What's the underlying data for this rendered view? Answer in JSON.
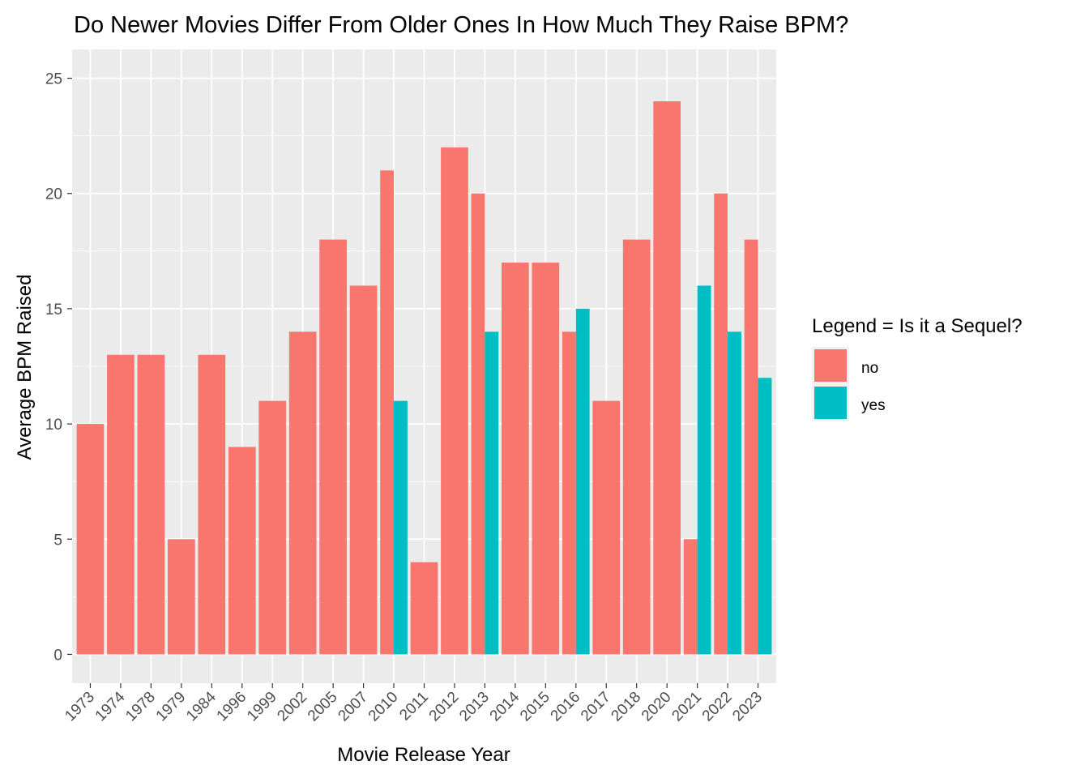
{
  "chart_data": {
    "type": "bar",
    "title": "Do Newer Movies Differ From Older Ones In How Much They Raise BPM?",
    "xlabel": "Movie Release Year",
    "ylabel": "Average BPM Raised",
    "ylim": [
      0,
      25
    ],
    "yticks": [
      0,
      5,
      10,
      15,
      20,
      25
    ],
    "grid": true,
    "legend_position": "right",
    "legend": {
      "title": "Legend = Is it a Sequel?",
      "entries": [
        {
          "label": "no",
          "color": "#F8766D"
        },
        {
          "label": "yes",
          "color": "#00BFC4"
        }
      ]
    },
    "categories": [
      "1973",
      "1974",
      "1978",
      "1979",
      "1984",
      "1996",
      "1999",
      "2002",
      "2005",
      "2007",
      "2010",
      "2011",
      "2012",
      "2013",
      "2014",
      "2015",
      "2016",
      "2017",
      "2018",
      "2020",
      "2021",
      "2022",
      "2023"
    ],
    "series": [
      {
        "name": "no",
        "color": "#F8766D",
        "values": [
          10,
          13,
          13,
          5,
          13,
          9,
          11,
          14,
          18,
          16,
          21,
          4,
          22,
          20,
          17,
          17,
          14,
          11,
          18,
          24,
          5,
          20,
          18
        ]
      },
      {
        "name": "yes",
        "color": "#00BFC4",
        "values": [
          null,
          null,
          null,
          null,
          null,
          null,
          null,
          null,
          null,
          null,
          11,
          null,
          null,
          14,
          null,
          null,
          15,
          null,
          null,
          null,
          16,
          14,
          12
        ]
      }
    ]
  }
}
